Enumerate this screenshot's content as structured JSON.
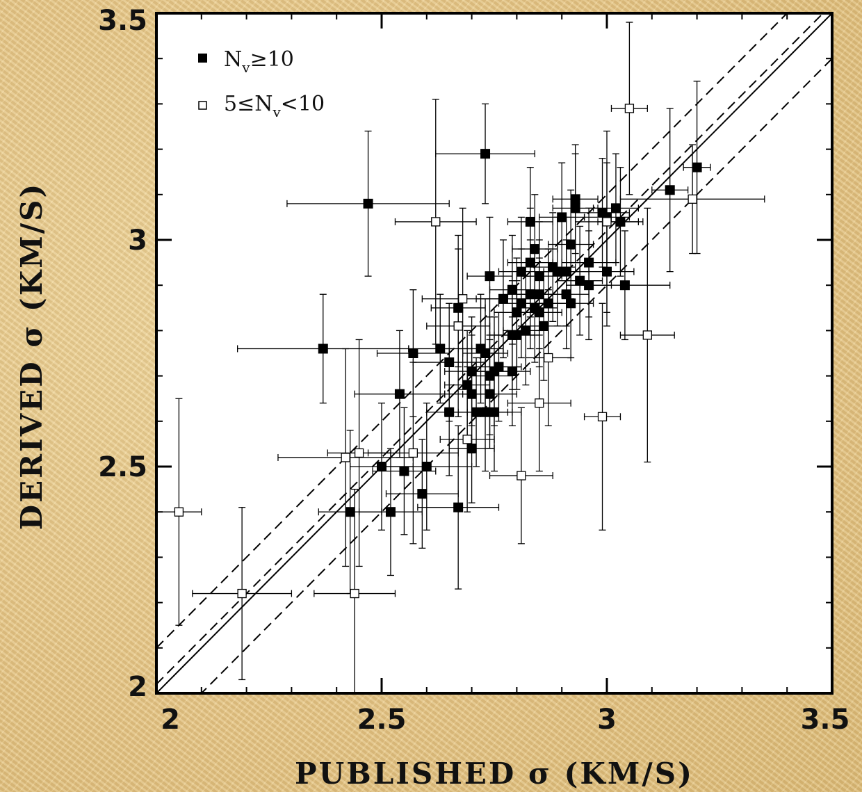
{
  "chart_data": {
    "type": "scatter",
    "xlabel": "PUBLISHED σ (KM/S)",
    "ylabel": "DERIVED σ (KM/S)",
    "xlim": [
      2,
      3.5
    ],
    "ylim": [
      2,
      3.5
    ],
    "xticks": [
      "2",
      "2.5",
      "3",
      "3.5"
    ],
    "yticks": [
      "2",
      "2.5",
      "3",
      "3.5"
    ],
    "grid": false,
    "legend_position": "top-left",
    "reference_lines": [
      {
        "style": "solid",
        "slope": 1,
        "intercept": 0
      },
      {
        "style": "dashed",
        "slope": 1,
        "intercept": 0.1
      },
      {
        "style": "dashed",
        "slope": 1,
        "intercept": -0.1
      },
      {
        "style": "dashed",
        "slope": 1,
        "intercept": 0.02
      }
    ],
    "legend": {
      "filled": {
        "main": "N",
        "sub": "v",
        "rest": "≥10"
      },
      "open": {
        "main": "5≤N",
        "sub": "v",
        "rest": "<10"
      }
    },
    "series": [
      {
        "marker": "filled-square",
        "points": [
          [
            2.47,
            3.08,
            0.18,
            0.16
          ],
          [
            2.73,
            3.19,
            0.11,
            0.11
          ],
          [
            2.37,
            2.76,
            0.19,
            0.12
          ],
          [
            2.43,
            2.4,
            0.07,
            0.18
          ],
          [
            2.5,
            2.5,
            0.07,
            0.14
          ],
          [
            2.52,
            2.4,
            0.07,
            0.14
          ],
          [
            2.54,
            2.66,
            0.1,
            0.14
          ],
          [
            2.55,
            2.49,
            0.07,
            0.14
          ],
          [
            2.57,
            2.75,
            0.08,
            0.14
          ],
          [
            2.59,
            2.44,
            0.08,
            0.12
          ],
          [
            2.6,
            2.5,
            0.1,
            0.14
          ],
          [
            2.63,
            2.76,
            0.07,
            0.12
          ],
          [
            2.65,
            2.73,
            0.08,
            0.13
          ],
          [
            2.65,
            2.62,
            0.05,
            0.14
          ],
          [
            2.67,
            2.85,
            0.06,
            0.13
          ],
          [
            2.67,
            2.41,
            0.09,
            0.18
          ],
          [
            2.69,
            2.68,
            0.05,
            0.12
          ],
          [
            2.7,
            2.54,
            0.05,
            0.12
          ],
          [
            2.7,
            2.71,
            0.06,
            0.12
          ],
          [
            2.7,
            2.66,
            0.06,
            0.13
          ],
          [
            2.71,
            2.62,
            0.07,
            0.12
          ],
          [
            2.72,
            2.76,
            0.05,
            0.12
          ],
          [
            2.73,
            2.75,
            0.05,
            0.12
          ],
          [
            2.73,
            2.62,
            0.06,
            0.13
          ],
          [
            2.74,
            2.7,
            0.05,
            0.13
          ],
          [
            2.74,
            2.92,
            0.05,
            0.13
          ],
          [
            2.74,
            2.66,
            0.06,
            0.12
          ],
          [
            2.75,
            2.71,
            0.05,
            0.12
          ],
          [
            2.75,
            2.62,
            0.06,
            0.13
          ],
          [
            2.76,
            2.72,
            0.05,
            0.12
          ],
          [
            2.77,
            2.87,
            0.06,
            0.13
          ],
          [
            2.79,
            2.71,
            0.04,
            0.12
          ],
          [
            2.79,
            2.79,
            0.05,
            0.12
          ],
          [
            2.79,
            2.89,
            0.05,
            0.12
          ],
          [
            2.8,
            2.84,
            0.05,
            0.12
          ],
          [
            2.8,
            2.79,
            0.05,
            0.12
          ],
          [
            2.81,
            2.93,
            0.05,
            0.12
          ],
          [
            2.81,
            2.86,
            0.05,
            0.12
          ],
          [
            2.82,
            2.8,
            0.05,
            0.12
          ],
          [
            2.83,
            2.88,
            0.05,
            0.12
          ],
          [
            2.83,
            2.95,
            0.05,
            0.12
          ],
          [
            2.83,
            3.04,
            0.05,
            0.12
          ],
          [
            2.84,
            2.98,
            0.05,
            0.12
          ],
          [
            2.84,
            2.85,
            0.05,
            0.12
          ],
          [
            2.85,
            2.88,
            0.05,
            0.12
          ],
          [
            2.85,
            2.92,
            0.05,
            0.12
          ],
          [
            2.85,
            2.84,
            0.05,
            0.12
          ],
          [
            2.86,
            2.81,
            0.05,
            0.12
          ],
          [
            2.87,
            2.86,
            0.05,
            0.12
          ],
          [
            2.88,
            2.94,
            0.05,
            0.12
          ],
          [
            2.89,
            2.93,
            0.05,
            0.12
          ],
          [
            2.9,
            3.05,
            0.05,
            0.12
          ],
          [
            2.91,
            2.88,
            0.05,
            0.12
          ],
          [
            2.91,
            2.93,
            0.05,
            0.12
          ],
          [
            2.92,
            2.99,
            0.05,
            0.12
          ],
          [
            2.92,
            2.86,
            0.05,
            0.12
          ],
          [
            2.93,
            3.09,
            0.05,
            0.12
          ],
          [
            2.93,
            3.07,
            0.05,
            0.12
          ],
          [
            2.94,
            2.91,
            0.05,
            0.12
          ],
          [
            2.96,
            2.95,
            0.06,
            0.12
          ],
          [
            2.96,
            2.9,
            0.05,
            0.12
          ],
          [
            2.99,
            3.06,
            0.06,
            0.12
          ],
          [
            3.0,
            2.93,
            0.06,
            0.12
          ],
          [
            3.0,
            3.05,
            0.05,
            0.12
          ],
          [
            3.02,
            3.07,
            0.05,
            0.12
          ],
          [
            3.03,
            3.04,
            0.05,
            0.12
          ],
          [
            3.04,
            2.9,
            0.1,
            0.12
          ],
          [
            3.14,
            3.11,
            0.04,
            0.18
          ],
          [
            3.2,
            3.16,
            0.03,
            0.19
          ]
        ]
      },
      {
        "marker": "open-square",
        "points": [
          [
            2.05,
            2.4,
            0.05,
            0.25
          ],
          [
            2.19,
            2.22,
            0.11,
            0.19
          ],
          [
            2.42,
            2.52,
            0.15,
            0.24
          ],
          [
            2.44,
            2.22,
            0.09,
            0.23
          ],
          [
            2.45,
            2.53,
            0.07,
            0.25
          ],
          [
            2.57,
            2.53,
            0.1,
            0.2
          ],
          [
            2.62,
            3.04,
            0.09,
            0.27
          ],
          [
            2.67,
            2.81,
            0.07,
            0.2
          ],
          [
            2.68,
            2.87,
            0.09,
            0.2
          ],
          [
            2.69,
            2.56,
            0.06,
            0.16
          ],
          [
            2.81,
            2.48,
            0.07,
            0.15
          ],
          [
            2.85,
            2.64,
            0.07,
            0.15
          ],
          [
            2.87,
            2.74,
            0.05,
            0.15
          ],
          [
            2.99,
            2.61,
            0.04,
            0.25
          ],
          [
            3.0,
            3.04,
            0.07,
            0.2
          ],
          [
            3.05,
            3.29,
            0.04,
            0.19
          ],
          [
            3.09,
            2.79,
            0.06,
            0.28
          ],
          [
            3.19,
            3.09,
            0.16,
            0.12
          ]
        ]
      }
    ]
  }
}
